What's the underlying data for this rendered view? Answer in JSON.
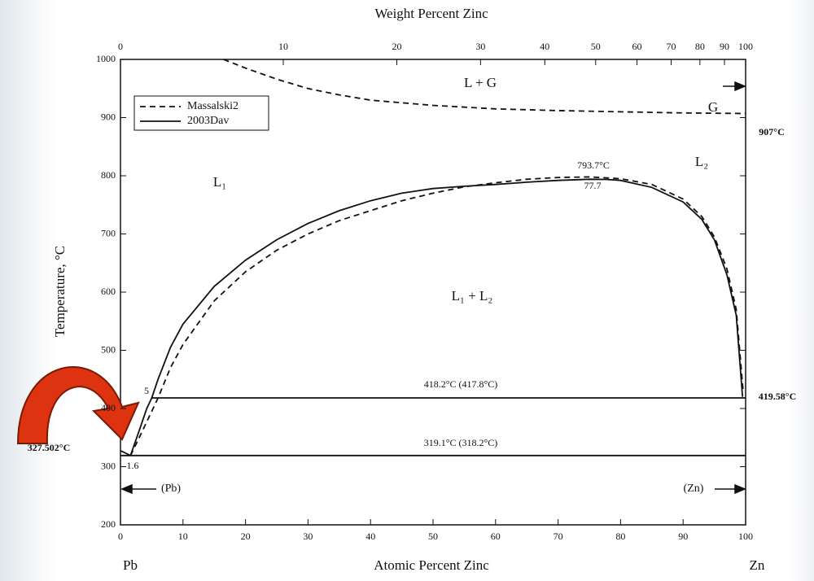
{
  "chart_data": {
    "type": "line",
    "title": "Weight Percent Zinc",
    "x_label": "Atomic Percent Zinc",
    "y_label": "Temperature, °C",
    "xlim": [
      0,
      100
    ],
    "xticks": [
      0,
      10,
      20,
      30,
      40,
      50,
      60,
      70,
      80,
      90,
      100
    ],
    "ylim": [
      200,
      1000
    ],
    "yticks": [
      200,
      300,
      400,
      500,
      600,
      700,
      800,
      900,
      1000
    ],
    "top_xticks": [
      0,
      10,
      20,
      30,
      40,
      50,
      60,
      70,
      80,
      90,
      100
    ],
    "grid": false,
    "legend": "upper left",
    "series": [
      {
        "name": "Massalski2",
        "color": "#111111",
        "line_style": "dashed",
        "x": [
          1.6,
          3,
          5,
          6,
          8,
          10,
          15,
          20,
          25,
          30,
          35,
          40,
          45,
          50,
          55,
          60,
          65,
          70,
          75,
          80,
          85,
          90,
          93,
          95,
          97,
          98.5,
          99.6,
          null,
          16.5,
          20,
          25,
          30,
          35,
          40,
          50,
          60,
          70,
          80,
          90,
          100
        ],
        "values": [
          319,
          350,
          395,
          418,
          470,
          510,
          585,
          635,
          672,
          700,
          723,
          740,
          757,
          770,
          781,
          788,
          794,
          797,
          798,
          795,
          785,
          760,
          730,
          695,
          640,
          570,
          430,
          null,
          1000,
          985,
          966,
          950,
          939,
          930,
          921,
          915,
          912,
          910,
          908,
          907
        ]
      },
      {
        "name": "2003Dav",
        "color": "#111111",
        "line_style": "solid",
        "x": [
          0,
          1.6,
          3,
          4.2,
          5,
          6,
          8,
          10,
          15,
          20,
          25,
          30,
          35,
          40,
          45,
          50,
          55,
          60,
          65,
          70,
          75,
          77.7,
          80,
          85,
          90,
          93,
          95,
          97,
          98.5,
          99.5,
          null,
          5,
          100,
          null,
          0,
          100
        ],
        "values": [
          327.5,
          319.1,
          362,
          400,
          418,
          450,
          505,
          545,
          610,
          655,
          690,
          718,
          740,
          757,
          770,
          778,
          782,
          785,
          789,
          792,
          794,
          793.7,
          792,
          780,
          755,
          725,
          690,
          630,
          560,
          420,
          null,
          418.2,
          418.2,
          null,
          319.1,
          319.1
        ]
      }
    ],
    "annotations": [
      "L + G",
      "G",
      "907°C",
      "L₁",
      "L₂",
      "793.7°C",
      "77.7",
      "L₁ + L₂",
      "5",
      "418.2°C (417.8°C)",
      "419.58°C",
      "327.502°C",
      "1.6",
      "319.1°C (318.2°C)",
      "(Pb)",
      "(Zn)",
      "Pb",
      "Zn"
    ]
  }
}
